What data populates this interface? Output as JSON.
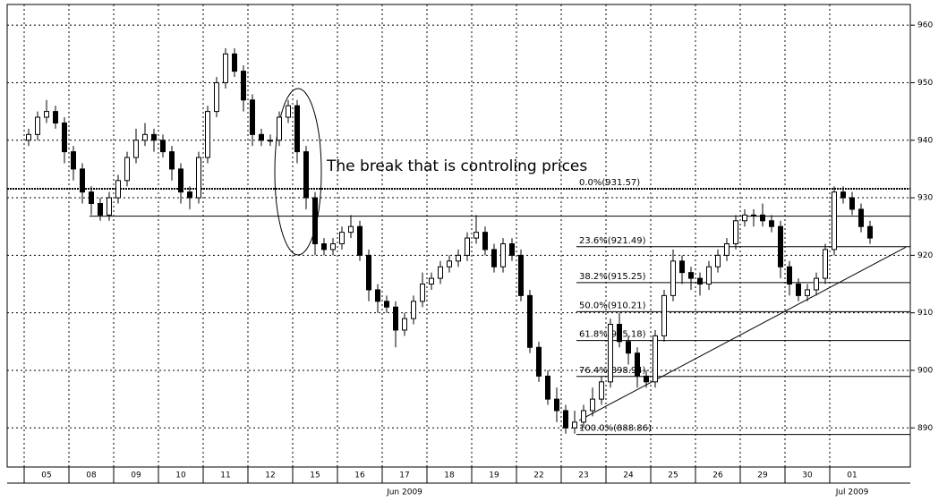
{
  "chart_data": {
    "type": "candlestick",
    "annotation": "The break that is controling prices",
    "up_color": "#ffffff",
    "down_color": "#000000",
    "grid": true,
    "xlim": [
      -2.4,
      98.5
    ],
    "ylim": [
      883.2,
      963.6
    ],
    "yticks": [
      890,
      900,
      910,
      920,
      930,
      940,
      950,
      960
    ],
    "xticks": [
      {
        "value": 2,
        "label": "05"
      },
      {
        "value": 7,
        "label": "08"
      },
      {
        "value": 12,
        "label": "09"
      },
      {
        "value": 17,
        "label": "10"
      },
      {
        "value": 22,
        "label": "11"
      },
      {
        "value": 27,
        "label": "12"
      },
      {
        "value": 32,
        "label": "15"
      },
      {
        "value": 37,
        "label": "16"
      },
      {
        "value": 42,
        "label": "17"
      },
      {
        "value": 47,
        "label": "18"
      },
      {
        "value": 52,
        "label": "19"
      },
      {
        "value": 57,
        "label": "22"
      },
      {
        "value": 62,
        "label": "23"
      },
      {
        "value": 67,
        "label": "24"
      },
      {
        "value": 72,
        "label": "25"
      },
      {
        "value": 77,
        "label": "26"
      },
      {
        "value": 82,
        "label": "29"
      },
      {
        "value": 87,
        "label": "30"
      },
      {
        "value": 92,
        "label": "01"
      }
    ],
    "month_labels": [
      {
        "label": "Jun 2009",
        "x": 42
      },
      {
        "label": "Jul 2009",
        "x": 92
      }
    ],
    "open": [
      940,
      941,
      944,
      945,
      943,
      938,
      935,
      931,
      929,
      927,
      930,
      933,
      937,
      940,
      941,
      940,
      938,
      935,
      931,
      930,
      937,
      945,
      950,
      955,
      952,
      947,
      941,
      940,
      940,
      944,
      946,
      938,
      930,
      922,
      921,
      922,
      924,
      925,
      920,
      914,
      912,
      911,
      907,
      909,
      912,
      915,
      916,
      918,
      919,
      920,
      923,
      924,
      921,
      918,
      922,
      920,
      913,
      904,
      899,
      895,
      893,
      890,
      891,
      893,
      895,
      898,
      908,
      905,
      903,
      899,
      898,
      906,
      913,
      919,
      917,
      916,
      915,
      918,
      920,
      922,
      926,
      927,
      927,
      926,
      925,
      918,
      915,
      913,
      914,
      916,
      921,
      931,
      930,
      928,
      925
    ],
    "high": [
      942,
      945,
      947,
      946,
      944,
      939,
      936,
      932,
      930,
      931,
      934,
      938,
      942,
      943,
      942,
      941,
      939,
      936,
      932,
      938,
      946,
      951,
      956,
      956,
      953,
      948,
      942,
      941,
      945,
      947,
      947,
      939,
      931,
      923,
      923,
      925,
      927,
      926,
      921,
      915,
      913,
      912,
      910,
      913,
      917,
      917,
      919,
      920,
      921,
      924,
      927,
      925,
      922,
      923,
      923,
      921,
      914,
      905,
      900,
      897,
      894,
      893,
      894,
      897,
      899,
      909,
      910,
      906,
      904,
      900,
      907,
      914,
      921,
      920,
      918,
      917,
      919,
      921,
      923,
      927,
      928,
      928,
      929,
      927,
      926,
      919,
      916,
      915,
      917,
      922,
      932,
      932,
      931,
      929,
      926
    ],
    "low": [
      939,
      940,
      943,
      942,
      936,
      933,
      929,
      927,
      926,
      926,
      929,
      932,
      936,
      939,
      938,
      937,
      933,
      929,
      928,
      929,
      936,
      944,
      949,
      951,
      945,
      939,
      939,
      939,
      939,
      943,
      936,
      928,
      920,
      920,
      920,
      921,
      923,
      919,
      912,
      910,
      910,
      904,
      906,
      908,
      911,
      914,
      915,
      917,
      918,
      919,
      922,
      920,
      917,
      917,
      919,
      912,
      903,
      898,
      894,
      891,
      889,
      889,
      890,
      892,
      894,
      897,
      904,
      901,
      897,
      897,
      897,
      905,
      912,
      915,
      914,
      913,
      914,
      917,
      919,
      921,
      925,
      925,
      925,
      924,
      916,
      913,
      912,
      912,
      913,
      915,
      920,
      929,
      927,
      924,
      922
    ],
    "close": [
      941,
      944,
      945,
      943,
      938,
      935,
      931,
      929,
      927,
      930,
      933,
      937,
      940,
      941,
      940,
      938,
      935,
      931,
      930,
      937,
      945,
      950,
      955,
      952,
      947,
      941,
      940,
      940,
      944,
      946,
      938,
      930,
      922,
      921,
      922,
      924,
      925,
      920,
      914,
      912,
      911,
      907,
      909,
      912,
      915,
      916,
      918,
      919,
      920,
      923,
      924,
      921,
      918,
      922,
      920,
      913,
      904,
      899,
      895,
      893,
      890,
      891,
      893,
      895,
      898,
      908,
      905,
      903,
      899,
      898,
      906,
      913,
      919,
      917,
      916,
      915,
      918,
      920,
      922,
      926,
      927,
      927,
      926,
      925,
      918,
      915,
      913,
      914,
      916,
      921,
      931,
      930,
      928,
      925,
      923
    ],
    "levels": [
      {
        "label": "0.0%(931.57)",
        "value": 931.57
      },
      {
        "label": "23.6%(921.49)",
        "value": 921.49
      },
      {
        "label": "38.2%(915.25)",
        "value": 915.25
      },
      {
        "label": "50.0%(910.21)",
        "value": 910.21
      },
      {
        "label": "61.8%(905.18)",
        "value": 905.18
      },
      {
        "label": "76.4%(898.94)",
        "value": 898.94
      },
      {
        "label": "100.0%(888.86)",
        "value": 888.86
      }
    ],
    "levels_start": 61.2,
    "support_line": {
      "value": 926.8,
      "x_start": 6.8
    },
    "trendline": {
      "x": [
        61.5,
        98
      ],
      "y": [
        891.3,
        921.4
      ]
    }
  }
}
